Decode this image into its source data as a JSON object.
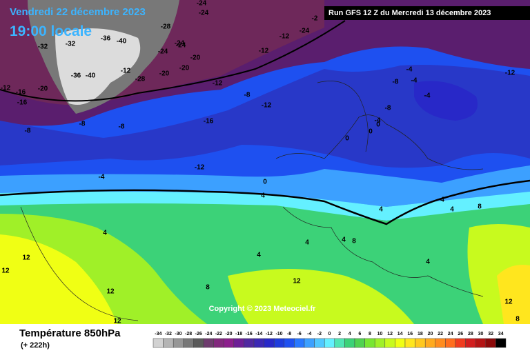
{
  "header": {
    "valid_date": "Vendredi 22 décembre 2023",
    "local_time": "19:00 locale",
    "run": "Run GFS 12 Z du Mercredi 13 décembre 2023"
  },
  "map": {
    "copyright": "Copyright © 2023 Meteociel.fr",
    "contour_labels": [
      -24,
      -24,
      -2,
      -24,
      -28,
      -24,
      -24,
      -20,
      -32,
      -32,
      -36,
      -40,
      -36,
      -40,
      -12,
      -28,
      -20,
      -20,
      -24,
      -12,
      -16,
      -20,
      -16,
      -12,
      -12,
      -12,
      -12,
      -8,
      -8,
      -8,
      -8,
      -12,
      -16,
      -12,
      -4,
      -4,
      -8,
      -4,
      -4,
      -8,
      -4,
      0,
      0,
      0,
      0,
      4,
      4,
      4,
      4,
      4,
      4,
      4,
      4,
      8,
      8,
      8,
      12,
      12,
      12,
      12,
      12,
      8,
      4,
      12
    ]
  },
  "legend": {
    "title": "Température 850hPa",
    "lead_time": "(+ 222h)",
    "ticks": [
      -34,
      -32,
      -30,
      -28,
      -26,
      -24,
      -22,
      -20,
      -18,
      -16,
      -14,
      -12,
      -10,
      -8,
      -6,
      -4,
      -2,
      0,
      2,
      4,
      6,
      8,
      10,
      12,
      14,
      16,
      18,
      20,
      22,
      24,
      26,
      28,
      30,
      32,
      34
    ],
    "colors": [
      "#d2d2d2",
      "#b4b4b4",
      "#969696",
      "#787878",
      "#5a5a5a",
      "#6e3c6e",
      "#82287d",
      "#8c1e8c",
      "#6e1e96",
      "#5028a0",
      "#3c28b4",
      "#2828c8",
      "#1e3cdc",
      "#1e50f0",
      "#2878ff",
      "#3ca0ff",
      "#50c8ff",
      "#64f0ff",
      "#50e6b4",
      "#3cd278",
      "#50d250",
      "#78e632",
      "#a0f028",
      "#c8fa1e",
      "#f0ff14",
      "#ffe61e",
      "#ffc81e",
      "#ffaa1e",
      "#ff8c1e",
      "#ff6e1e",
      "#f03c1e",
      "#d21e1e",
      "#b41414",
      "#8c0a0a",
      "#000000"
    ]
  }
}
